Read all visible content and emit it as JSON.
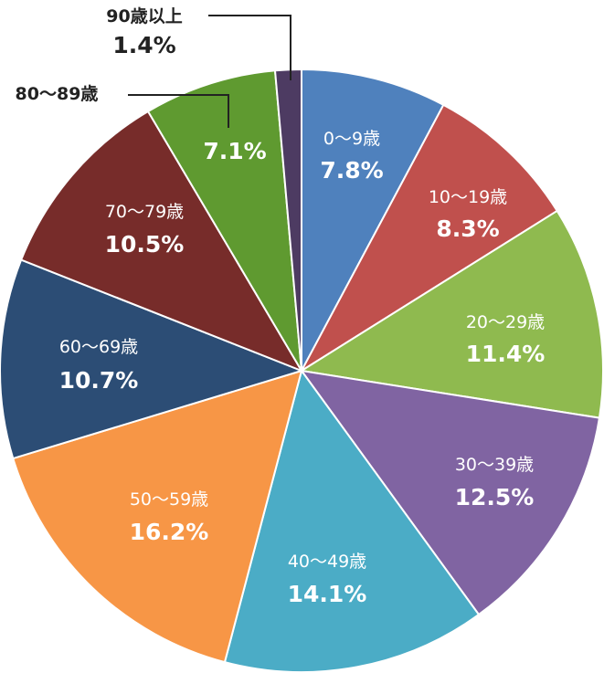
{
  "chart_data": {
    "type": "pie",
    "slices": [
      {
        "label": "0～9歳",
        "value": 7.8,
        "text": "7.8%",
        "color": "#4f81bd"
      },
      {
        "label": "10～19歳",
        "value": 8.3,
        "text": "8.3%",
        "color": "#c0504d"
      },
      {
        "label": "20～29歳",
        "value": 11.4,
        "text": "11.4%",
        "color": "#8fba4f"
      },
      {
        "label": "30～39歳",
        "value": 12.5,
        "text": "12.5%",
        "color": "#8064a2"
      },
      {
        "label": "40～49歳",
        "value": 14.1,
        "text": "14.1%",
        "color": "#4bacc6"
      },
      {
        "label": "50～59歳",
        "value": 16.2,
        "text": "16.2%",
        "color": "#f79646"
      },
      {
        "label": "60～69歳",
        "value": 10.7,
        "text": "10.7%",
        "color": "#2c4d75"
      },
      {
        "label": "70～79歳",
        "value": 10.5,
        "text": "10.5%",
        "color": "#772c2a"
      },
      {
        "label": "80～89歳",
        "value": 7.1,
        "text": "7.1%",
        "color": "#5f9a30"
      },
      {
        "label": "90歳以上",
        "value": 1.4,
        "text": "1.4%",
        "color": "#4d3b62"
      }
    ]
  }
}
